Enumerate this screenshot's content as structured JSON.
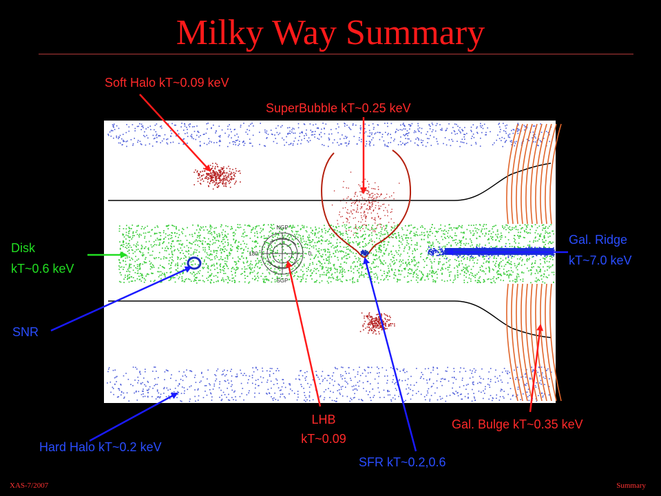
{
  "title": "Milky Way Summary",
  "labels": {
    "soft_halo": "Soft Halo kT~0.09 keV",
    "superbubble": "SuperBubble kT~0.25 keV",
    "disk_line1": "Disk",
    "disk_line2": "kT~0.6 keV",
    "snr": "SNR",
    "gal_ridge_line1": "Gal. Ridge",
    "gal_ridge_line2": "kT~7.0 keV",
    "lhb_line1": "LHB",
    "lhb_line2": "kT~0.09",
    "gal_bulge": "Gal. Bulge kT~0.35 keV",
    "hard_halo": "Hard Halo kT~0.2 keV",
    "sfr": "SFR kT~0.2,0.6"
  },
  "inset": {
    "top": "NGP",
    "bottom": "SGP",
    "left": "180",
    "right": "0"
  },
  "footer": {
    "left": "XAS-7/2007",
    "right": "Summary"
  },
  "colors": {
    "title": "#ff1a1a",
    "red_label": "#ff2a2a",
    "blue_label": "#2a4dff",
    "green_label": "#22dd22"
  }
}
